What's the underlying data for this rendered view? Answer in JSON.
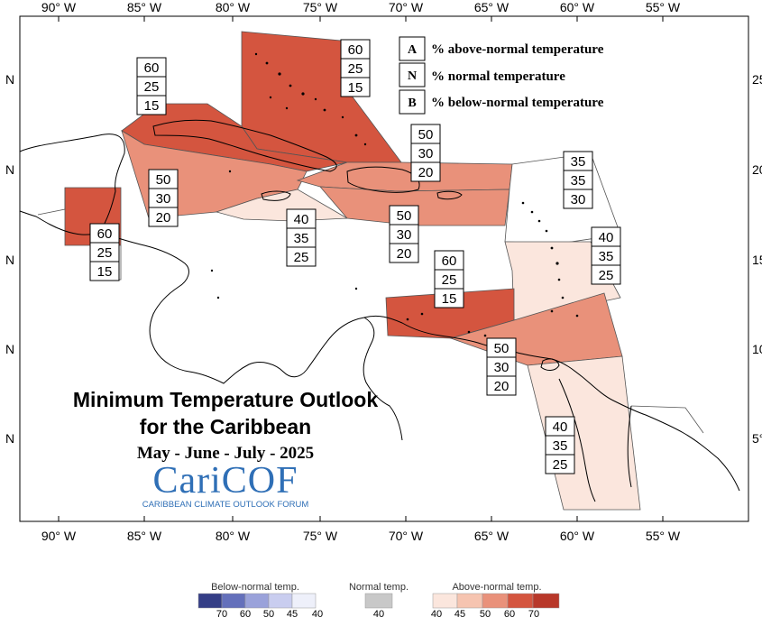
{
  "map": {
    "title_line1": "Minimum Temperature Outlook",
    "title_line2": "for the Caribbean",
    "period": "May - June - July - 2025",
    "logo_text": "CariCOF",
    "logo_subtitle": "CARIBBEAN CLIMATE OUTLOOK FORUM",
    "lon_ticks": [
      "90° W",
      "85° W",
      "80° W",
      "75° W",
      "70° W",
      "65° W",
      "60° W",
      "55° W"
    ],
    "lat_ticks_left": [
      "N",
      "N",
      "N",
      "N",
      "N"
    ],
    "lat_ticks_right": [
      "25°",
      "20°",
      "15°",
      "10°",
      "5°"
    ]
  },
  "legend": {
    "items": [
      {
        "letter": "A",
        "text": "% above-normal temperature"
      },
      {
        "letter": "N",
        "text": "% normal temperature"
      },
      {
        "letter": "B",
        "text": "% below-normal temperature"
      }
    ]
  },
  "colors": {
    "above_40": "#fbe6dd",
    "above_45": "#f6c4b0",
    "above_50": "#e9917a",
    "above_60": "#d4553f",
    "above_70": "#b8382a",
    "normal_40": "#c8c8c8",
    "below_40": "#eef0fa",
    "below_45": "#c9cdef",
    "below_50": "#9aa2da",
    "below_60": "#6470bb",
    "below_70": "#343e86"
  },
  "regions": [
    {
      "name": "bahamas",
      "probs": [
        "60",
        "25",
        "15"
      ]
    },
    {
      "name": "cuba",
      "probs": [
        "60",
        "25",
        "15"
      ]
    },
    {
      "name": "belize",
      "probs": [
        "60",
        "25",
        "15"
      ]
    },
    {
      "name": "cayman-jamaica",
      "probs": [
        "50",
        "30",
        "20"
      ]
    },
    {
      "name": "jamaica-south",
      "probs": [
        "40",
        "35",
        "25"
      ]
    },
    {
      "name": "hispaniola-north",
      "probs": [
        "50",
        "30",
        "20"
      ]
    },
    {
      "name": "hispaniola-south",
      "probs": [
        "50",
        "30",
        "20"
      ]
    },
    {
      "name": "northern-leewards",
      "probs": [
        "35",
        "35",
        "30"
      ]
    },
    {
      "name": "windwards",
      "probs": [
        "40",
        "35",
        "25"
      ]
    },
    {
      "name": "abc-islands",
      "probs": [
        "60",
        "25",
        "15"
      ]
    },
    {
      "name": "trinidad",
      "probs": [
        "50",
        "30",
        "20"
      ]
    },
    {
      "name": "guianas",
      "probs": [
        "40",
        "35",
        "25"
      ]
    }
  ],
  "colorbar": {
    "below_label": "Below-normal temp.",
    "normal_label": "Normal temp.",
    "above_label": "Above-normal temp.",
    "below_ticks": [
      "70",
      "60",
      "50",
      "45",
      "40"
    ],
    "normal_ticks": [
      "40"
    ],
    "above_ticks": [
      "40",
      "45",
      "50",
      "60",
      "70"
    ]
  }
}
